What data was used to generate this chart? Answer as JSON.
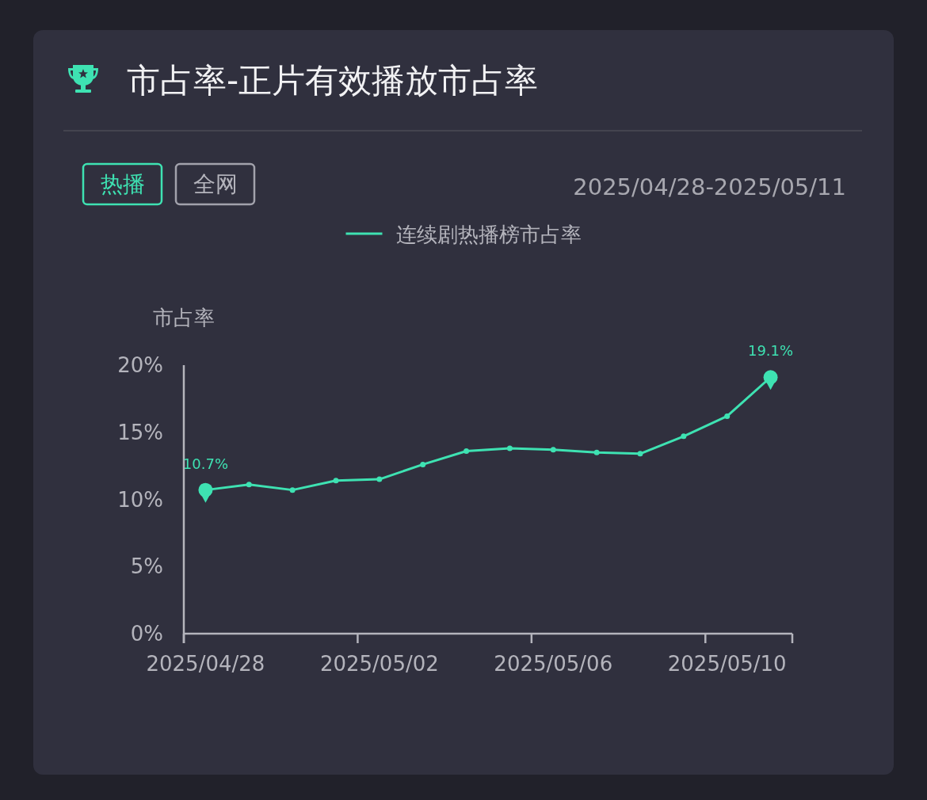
{
  "chart_data": {
    "type": "line",
    "title": "市占率-正片有效播放市占率",
    "subtitle": "2025/04/28-2025/05/11",
    "ylabel": "市占率",
    "annotations": [
      "热播",
      "全网"
    ],
    "categories": [
      "2025/04/28",
      null,
      null,
      null,
      "2025/05/02",
      null,
      null,
      null,
      "2025/05/06",
      null,
      null,
      null,
      "2025/05/10",
      null
    ],
    "series": [
      {
        "name": "连续剧热播榜市占率",
        "color": "#3ee2b2",
        "values": [
          10.7,
          11.1,
          10.7,
          11.4,
          11.5,
          12.6,
          13.6,
          13.8,
          13.7,
          13.5,
          13.4,
          14.7,
          16.2,
          19.1
        ],
        "value_labels": [
          "10.7%",
          null,
          null,
          null,
          null,
          null,
          null,
          null,
          null,
          null,
          null,
          null,
          null,
          "19.1%"
        ]
      }
    ],
    "ylim": [
      0,
      20
    ],
    "yticks": [
      {
        "value": 0,
        "label": "0%"
      },
      {
        "value": 5,
        "label": "5%"
      },
      {
        "value": 10,
        "label": "10%"
      },
      {
        "value": 15,
        "label": "15%"
      },
      {
        "value": 20,
        "label": "20%"
      }
    ],
    "legend": "top",
    "marker": "circle"
  }
}
